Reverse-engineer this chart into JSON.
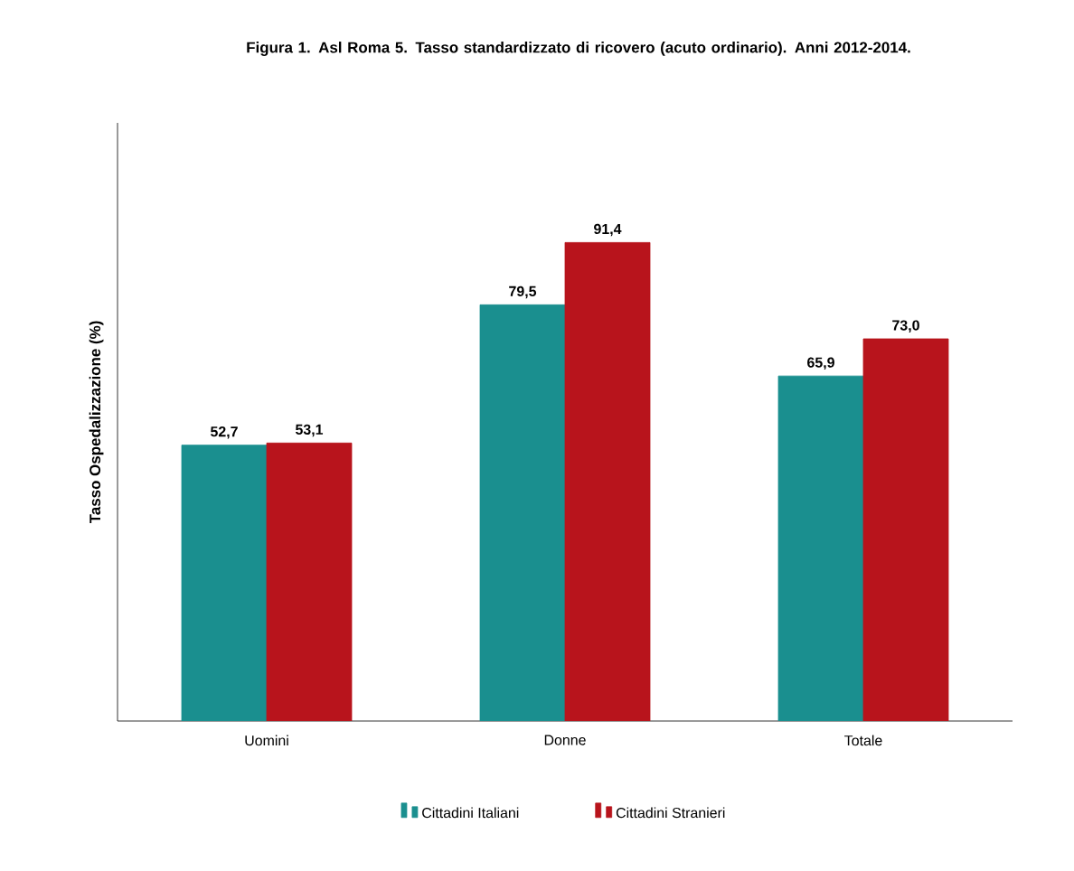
{
  "chart_data": {
    "type": "bar",
    "title": "Figura 1. Asl Roma 5. Tasso standardizzato di ricovero (acuto ordinario). Anni 2012-2014.",
    "ylabel": "Tasso Ospedalizzazione  (%)",
    "categories": [
      "Uomini",
      "Donne",
      "Totale"
    ],
    "series": [
      {
        "name": "Cittadini Italiani",
        "color": "#1a8f8f",
        "values": [
          52.7,
          79.5,
          65.9
        ],
        "value_labels": [
          "52,7",
          "79,5",
          "65,9"
        ]
      },
      {
        "name": "Cittadini Stranieri",
        "color": "#b8141c",
        "values": [
          53.1,
          91.4,
          73.0
        ],
        "value_labels": [
          "53,1",
          "91,4",
          "73,0"
        ]
      }
    ],
    "tick_labels": "x",
    "grid": false,
    "legend": "bottom"
  }
}
